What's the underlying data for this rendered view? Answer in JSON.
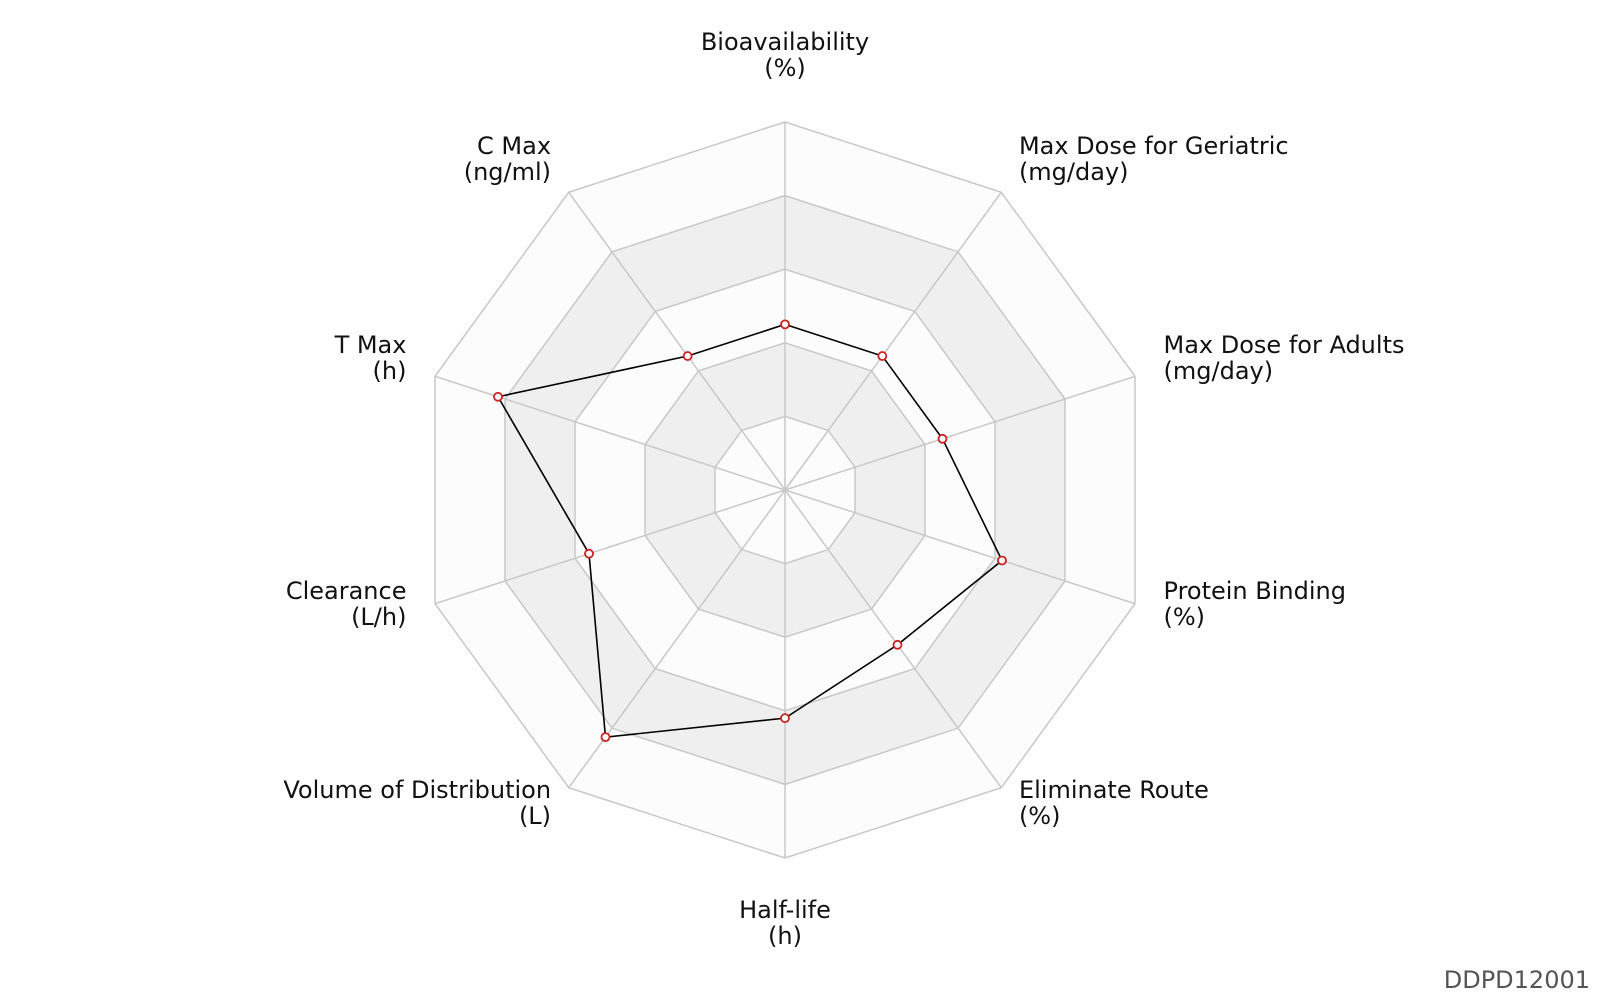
{
  "chart_data": {
    "type": "radar",
    "axes": [
      {
        "name": "Bioavailability",
        "unit": "(%)",
        "value": 0.45
      },
      {
        "name": "Max Dose for Geriatric",
        "unit": "(mg/day)",
        "value": 0.45
      },
      {
        "name": "Max Dose for Adults",
        "unit": "(mg/day)",
        "value": 0.45
      },
      {
        "name": "Protein Binding",
        "unit": "(%)",
        "value": 0.62
      },
      {
        "name": "Eliminate Route",
        "unit": "(%)",
        "value": 0.52
      },
      {
        "name": "Half-life",
        "unit": "(h)",
        "value": 0.62
      },
      {
        "name": "Volume of Distribution",
        "unit": "(L)",
        "value": 0.83
      },
      {
        "name": "Clearance",
        "unit": "(L/h)",
        "value": 0.56
      },
      {
        "name": "T Max",
        "unit": "(h)",
        "value": 0.82
      },
      {
        "name": "C Max",
        "unit": "(ng/ml)",
        "value": 0.45
      }
    ],
    "rings": 5,
    "range": [
      0,
      1
    ],
    "band_color": "#efefef",
    "background_color": "#fcfcfc",
    "grid_color": "#c8c8c8",
    "line_color": "#000000",
    "marker_color": "#cc2222"
  },
  "footer": {
    "id_label": "DDPD12001"
  }
}
